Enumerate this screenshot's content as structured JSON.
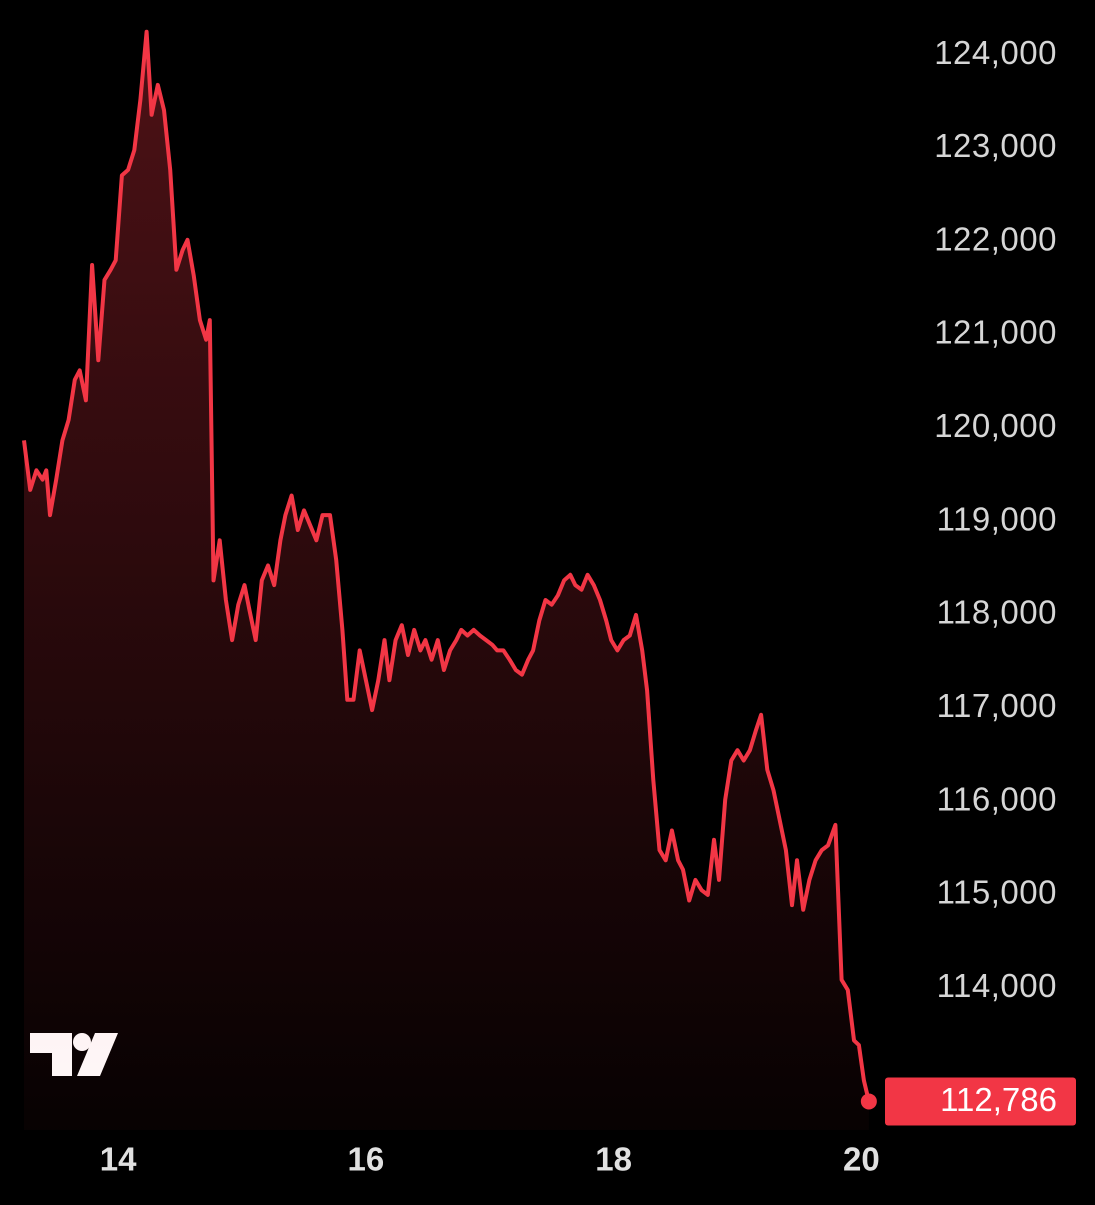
{
  "chart_data": {
    "type": "area",
    "x": [
      13.24,
      13.29,
      13.34,
      13.39,
      13.42,
      13.45,
      13.5,
      13.55,
      13.6,
      13.65,
      13.69,
      13.74,
      13.79,
      13.84,
      13.89,
      13.94,
      13.98,
      14.03,
      14.08,
      14.13,
      14.18,
      14.23,
      14.27,
      14.32,
      14.37,
      14.42,
      14.47,
      14.52,
      14.56,
      14.61,
      14.66,
      14.71,
      14.74,
      14.77,
      14.82,
      14.87,
      14.92,
      14.97,
      15.02,
      15.06,
      15.11,
      15.16,
      15.21,
      15.26,
      15.31,
      15.35,
      15.4,
      15.45,
      15.5,
      15.55,
      15.6,
      15.65,
      15.71,
      15.76,
      15.81,
      15.85,
      15.9,
      15.95,
      16.0,
      16.05,
      16.1,
      16.15,
      16.19,
      16.24,
      16.29,
      16.34,
      16.39,
      16.44,
      16.48,
      16.53,
      16.58,
      16.63,
      16.68,
      16.73,
      16.77,
      16.82,
      16.87,
      16.92,
      16.97,
      17.02,
      17.06,
      17.11,
      17.16,
      17.21,
      17.26,
      17.31,
      17.35,
      17.4,
      17.45,
      17.5,
      17.55,
      17.6,
      17.65,
      17.69,
      17.74,
      17.79,
      17.84,
      17.89,
      17.94,
      17.98,
      18.03,
      18.08,
      18.13,
      18.18,
      18.23,
      18.27,
      18.32,
      18.37,
      18.42,
      18.47,
      18.52,
      18.56,
      18.61,
      18.66,
      18.71,
      18.76,
      18.81,
      18.85,
      18.9,
      18.95,
      19.0,
      19.05,
      19.1,
      19.15,
      19.19,
      19.24,
      19.29,
      19.34,
      19.39,
      19.44,
      19.48,
      19.53,
      19.58,
      19.63,
      19.68,
      19.73,
      19.79,
      19.84,
      19.89,
      19.94,
      19.98,
      20.02,
      20.06
    ],
    "series": [
      {
        "color": "#f23645",
        "values": [
          119870,
          119340,
          119550,
          119450,
          119550,
          119070,
          119450,
          119870,
          120090,
          120520,
          120620,
          120300,
          121750,
          120730,
          121590,
          121700,
          121800,
          122710,
          122770,
          122980,
          123520,
          124250,
          123360,
          123680,
          123410,
          122770,
          121700,
          121910,
          122020,
          121640,
          121160,
          120950,
          121160,
          118370,
          118800,
          118160,
          117730,
          118110,
          118320,
          118050,
          117730,
          118370,
          118530,
          118320,
          118800,
          119070,
          119280,
          118910,
          119120,
          118960,
          118800,
          119070,
          119070,
          118590,
          117840,
          117090,
          117090,
          117620,
          117300,
          116980,
          117300,
          117730,
          117300,
          117730,
          117890,
          117570,
          117840,
          117620,
          117730,
          117520,
          117730,
          117410,
          117620,
          117730,
          117840,
          117780,
          117840,
          117780,
          117730,
          117680,
          117620,
          117620,
          117520,
          117410,
          117360,
          117520,
          117620,
          117940,
          118160,
          118110,
          118210,
          118370,
          118430,
          118320,
          118270,
          118430,
          118320,
          118160,
          117940,
          117730,
          117620,
          117730,
          117780,
          118000,
          117620,
          117190,
          116230,
          115480,
          115370,
          115690,
          115370,
          115270,
          114940,
          115160,
          115050,
          115000,
          115590,
          115160,
          116020,
          116440,
          116550,
          116440,
          116550,
          116770,
          116930,
          116340,
          116120,
          115800,
          115480,
          114890,
          115370,
          114840,
          115160,
          115370,
          115480,
          115530,
          115750,
          114090,
          113980,
          113440,
          113390,
          113010,
          112786
        ]
      }
    ],
    "price_label": {
      "value": 112786,
      "label": "112,786"
    },
    "xlim": [
      13.24,
      20.15
    ],
    "xticks": [
      14,
      16,
      18,
      20
    ],
    "ylim": [
      112480,
      124590
    ],
    "yticks": [
      {
        "value": 114000,
        "label": "114,000"
      },
      {
        "value": 115000,
        "label": "115,000"
      },
      {
        "value": 116000,
        "label": "116,000"
      },
      {
        "value": 117000,
        "label": "117,000"
      },
      {
        "value": 118000,
        "label": "118,000"
      },
      {
        "value": 119000,
        "label": "119,000"
      },
      {
        "value": 120000,
        "label": "120,000"
      },
      {
        "value": 121000,
        "label": "121,000"
      },
      {
        "value": 122000,
        "label": "122,000"
      },
      {
        "value": 123000,
        "label": "123,000"
      },
      {
        "value": 124000,
        "label": "124,000"
      }
    ],
    "grid": false
  }
}
